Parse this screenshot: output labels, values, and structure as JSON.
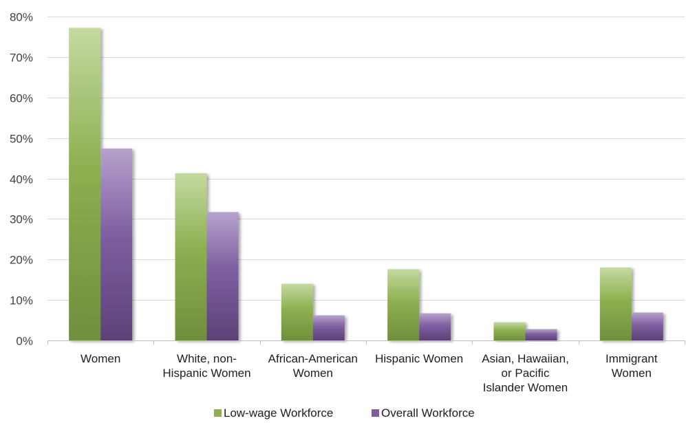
{
  "chart_data": {
    "type": "bar",
    "categories": [
      [
        "Women"
      ],
      [
        "White, non-",
        "Hispanic Women"
      ],
      [
        "African-American",
        "Women"
      ],
      [
        "Hispanic Women"
      ],
      [
        "Asian, Hawaiian,",
        "or Pacific",
        "Islander Women"
      ],
      [
        "Immigrant",
        "Women"
      ]
    ],
    "series": [
      {
        "name": "Low-wage Workforce",
        "values": [
          77.2,
          41.3,
          14.0,
          17.6,
          4.5,
          18.0
        ],
        "color": "#8cb050"
      },
      {
        "name": "Overall Workforce",
        "values": [
          47.4,
          31.7,
          6.2,
          6.7,
          2.8,
          6.9
        ],
        "color": "#7e5ea0"
      }
    ],
    "ylim": [
      0,
      80
    ],
    "yticks": [
      0,
      10,
      20,
      30,
      40,
      50,
      60,
      70,
      80
    ],
    "ytick_labels": [
      "0%",
      "10%",
      "20%",
      "30%",
      "40%",
      "50%",
      "60%",
      "70%",
      "80%"
    ],
    "grid": true,
    "legend_position": "bottom-center"
  }
}
